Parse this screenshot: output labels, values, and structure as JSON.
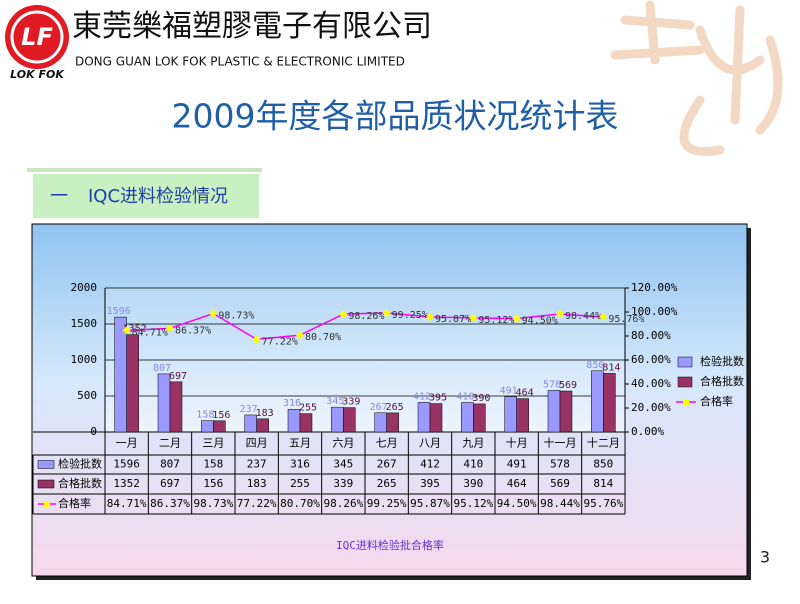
{
  "header": {
    "logo_mark": "LF",
    "logo_caption": "LOK FOK",
    "company_name_cn": "東莞樂福塑膠電子有限公司",
    "company_name_en": "DONG GUAN LOK FOK PLASTIC & ELECTRONIC LIMITED"
  },
  "slide_title": "2009年度各部品质状况统计表",
  "section": {
    "number": "一",
    "label": "IQC进料检验情况"
  },
  "chart_data": {
    "type": "bar-line",
    "title": "IQC进料检验批合格率",
    "categories": [
      "一月",
      "二月",
      "三月",
      "四月",
      "五月",
      "六月",
      "七月",
      "八月",
      "九月",
      "十月",
      "十一月",
      "十二月"
    ],
    "series": [
      {
        "name": "检验批数",
        "color": "#9999ff",
        "values": [
          1596,
          807,
          158,
          237,
          316,
          345,
          267,
          412,
          410,
          491,
          578,
          850
        ]
      },
      {
        "name": "合格批数",
        "color": "#993366",
        "values": [
          1352,
          697,
          156,
          183,
          255,
          339,
          265,
          395,
          390,
          464,
          569,
          814
        ]
      },
      {
        "name": "合格率",
        "color": "#ff00ff",
        "marker_color": "#ffff00",
        "axis": "y2",
        "values": [
          84.71,
          86.37,
          98.73,
          77.22,
          80.7,
          98.26,
          99.25,
          95.87,
          95.12,
          94.5,
          98.44,
          95.76
        ],
        "value_labels": [
          "84.71%",
          "86.37%",
          "98.73%",
          "77.22%",
          "80.70%",
          "98.26%",
          "99.25%",
          "95.87%",
          "95.12%",
          "94.50%",
          "98.44%",
          "95.76%"
        ]
      }
    ],
    "ylim": [
      0,
      2000
    ],
    "yticks": [
      0,
      500,
      1000,
      1500,
      2000
    ],
    "y2lim": [
      0,
      120
    ],
    "y2ticks": [
      {
        "value": 0,
        "label": "0.00%"
      },
      {
        "value": 20,
        "label": "20.00%"
      },
      {
        "value": 40,
        "label": "40.00%"
      },
      {
        "value": 60,
        "label": "60.00%"
      },
      {
        "value": 80,
        "label": "80.00%"
      },
      {
        "value": 100,
        "label": "100.00%"
      },
      {
        "value": 120,
        "label": "120.00%"
      }
    ],
    "grid": true,
    "legend": "right"
  },
  "page_number": "3"
}
